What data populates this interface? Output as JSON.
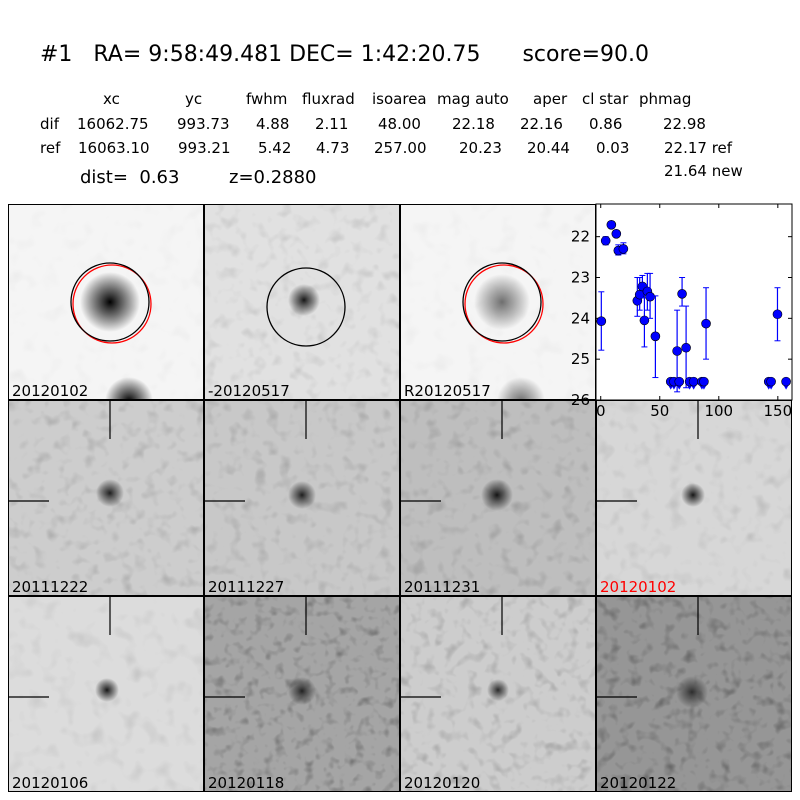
{
  "header": {
    "title": "#1   RA= 9:58:49.481 DEC= 1:42:20.75      score=90.0",
    "columns": [
      "xc",
      "yc",
      "fwhm",
      "fluxrad",
      "isoarea",
      "mag auto",
      "aper",
      "cl star",
      "phmag"
    ],
    "rows": [
      {
        "label": "dif",
        "values": [
          "16062.75",
          "993.73",
          "4.88",
          "2.11",
          "48.00",
          "22.18",
          "22.16",
          "0.86",
          "22.98"
        ]
      },
      {
        "label": "ref",
        "values": [
          "16063.10",
          "993.21",
          "5.42",
          "4.73",
          "257.00",
          "20.23",
          "20.44",
          "0.03",
          "22.17 ref"
        ]
      }
    ],
    "dist": "dist=  0.63",
    "z": "z=0.2880",
    "new_mag": "21.64 new"
  },
  "panels": [
    {
      "label": "20120102",
      "label_color": "#000000"
    },
    {
      "label": "-20120517",
      "label_color": "#000000"
    },
    {
      "label": "R20120517",
      "label_color": "#000000"
    },
    {
      "label": "20111222",
      "label_color": "#000000"
    },
    {
      "label": "20111227",
      "label_color": "#000000"
    },
    {
      "label": "20111231",
      "label_color": "#000000"
    },
    {
      "label": "20120102",
      "label_color": "#ff0000"
    },
    {
      "label": "20120106",
      "label_color": "#000000"
    },
    {
      "label": "20120118",
      "label_color": "#000000"
    },
    {
      "label": "20120120",
      "label_color": "#000000"
    },
    {
      "label": "20120122",
      "label_color": "#000000"
    }
  ],
  "chart_data": {
    "type": "scatter",
    "title": "",
    "xlabel": "",
    "ylabel": "",
    "xlim": [
      -4,
      162
    ],
    "ylim": [
      26,
      21.2
    ],
    "y_inverted": true,
    "xticks": [
      0,
      50,
      100,
      150
    ],
    "yticks": [
      22,
      23,
      24,
      25,
      26
    ],
    "color": "#0000ff",
    "points": [
      {
        "x": 0.5,
        "y": 24.07,
        "lo": 23.35,
        "hi": 24.78
      },
      {
        "x": 4.2,
        "y": 22.1,
        "lo": 22.0,
        "hi": 22.2
      },
      {
        "x": 9,
        "y": 21.71,
        "lo": 21.63,
        "hi": 21.79
      },
      {
        "x": 13.2,
        "y": 21.93,
        "lo": 21.85,
        "hi": 22.0
      },
      {
        "x": 14.9,
        "y": 22.34,
        "lo": 22.2,
        "hi": 22.45
      },
      {
        "x": 19.2,
        "y": 22.3,
        "lo": 22.15,
        "hi": 22.42
      },
      {
        "x": 31,
        "y": 23.57,
        "lo": 23.0,
        "hi": 23.95
      },
      {
        "x": 33,
        "y": 23.42,
        "lo": 23.0,
        "hi": 23.8
      },
      {
        "x": 35.3,
        "y": 23.22,
        "lo": 22.95,
        "hi": 23.5
      },
      {
        "x": 37,
        "y": 24.05,
        "lo": 23.3,
        "hi": 24.7
      },
      {
        "x": 39.5,
        "y": 23.34,
        "lo": 22.9,
        "hi": 23.8
      },
      {
        "x": 41.8,
        "y": 23.47,
        "lo": 22.9,
        "hi": 24.0
      },
      {
        "x": 46.3,
        "y": 24.44,
        "lo": 23.45,
        "hi": 25.45
      },
      {
        "x": 64.7,
        "y": 24.8,
        "lo": 23.8,
        "hi": 25.8
      },
      {
        "x": 68.9,
        "y": 23.4,
        "lo": 23.0,
        "hi": 23.7
      },
      {
        "x": 72.3,
        "y": 24.72,
        "lo": 23.7,
        "hi": 25.7
      },
      {
        "x": 89.2,
        "y": 24.13,
        "lo": 23.25,
        "hi": 25.0
      },
      {
        "x": 149.7,
        "y": 23.9,
        "lo": 23.25,
        "hi": 24.55
      }
    ],
    "upper_limits": [
      {
        "x": 59.3,
        "y": 25.55
      },
      {
        "x": 62,
        "y": 25.55
      },
      {
        "x": 66.5,
        "y": 25.55
      },
      {
        "x": 75.3,
        "y": 25.55
      },
      {
        "x": 78.7,
        "y": 25.55
      },
      {
        "x": 85.7,
        "y": 25.55
      },
      {
        "x": 87.4,
        "y": 25.55
      },
      {
        "x": 142.3,
        "y": 25.55
      },
      {
        "x": 144.3,
        "y": 25.55
      },
      {
        "x": 157,
        "y": 25.55
      }
    ]
  }
}
